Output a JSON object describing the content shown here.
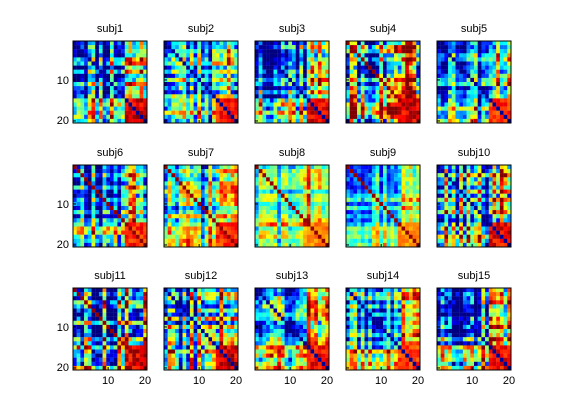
{
  "figure": {
    "background": "#ffffff"
  },
  "chart_data": {
    "type": "heatmap",
    "grid": "3x5",
    "matrix_size": 20,
    "colormap": "jet",
    "x_ticks": [
      "10",
      "20"
    ],
    "y_ticks": [
      "10",
      "20"
    ],
    "panels": [
      {
        "title": "subj1",
        "seed": 11,
        "contrast": 1.0
      },
      {
        "title": "subj2",
        "seed": 23,
        "contrast": 0.9
      },
      {
        "title": "subj3",
        "seed": 37,
        "contrast": 0.95
      },
      {
        "title": "subj4",
        "seed": 41,
        "contrast": 1.0
      },
      {
        "title": "subj5",
        "seed": 53,
        "contrast": 0.8
      },
      {
        "title": "subj6",
        "seed": 67,
        "contrast": 0.85
      },
      {
        "title": "subj7",
        "seed": 71,
        "contrast": 0.8
      },
      {
        "title": "subj8",
        "seed": 83,
        "contrast": 0.6
      },
      {
        "title": "subj9",
        "seed": 97,
        "contrast": 0.55
      },
      {
        "title": "subj10",
        "seed": 101,
        "contrast": 0.95
      },
      {
        "title": "subj11",
        "seed": 113,
        "contrast": 1.0
      },
      {
        "title": "subj12",
        "seed": 127,
        "contrast": 1.0
      },
      {
        "title": "subj13",
        "seed": 131,
        "contrast": 0.9
      },
      {
        "title": "subj14",
        "seed": 149,
        "contrast": 0.75
      },
      {
        "title": "subj15",
        "seed": 157,
        "contrast": 0.95
      }
    ]
  }
}
